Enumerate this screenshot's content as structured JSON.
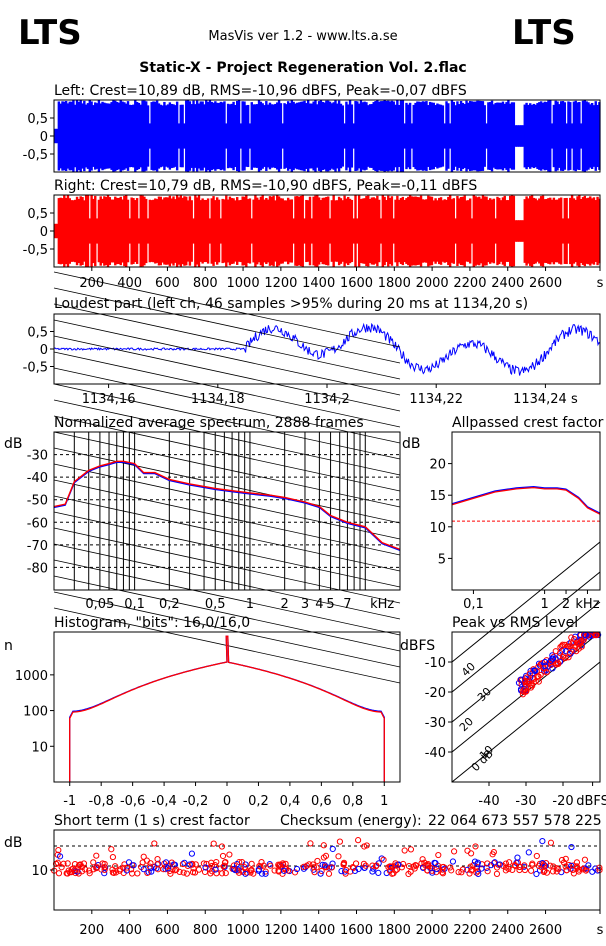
{
  "header": {
    "logo_left": "LTS",
    "logo_right": "LTS",
    "app_title": "MasVis ver 1.2 - www.lts.a.se",
    "file_title": "Static-X - Project Regeneration Vol. 2.flac"
  },
  "colors": {
    "left": "#0000ff",
    "right": "#ff0000",
    "fill_blue": "#0000ff",
    "fill_red": "#ff0000"
  },
  "chart_data": [
    {
      "id": "left",
      "type": "area",
      "title": "Left: Crest=10,89 dB, RMS=-10,96 dBFS, Peak=-0,07 dBFS",
      "ylim": [
        -1,
        1
      ],
      "yticks": [
        "0,5",
        "0",
        "-0,5"
      ],
      "ytick_values": [
        0.5,
        0,
        -0.5
      ],
      "xlim": [
        0,
        2888
      ],
      "series": [
        {
          "values": "waveform envelope"
        }
      ]
    },
    {
      "id": "right",
      "type": "area",
      "title": "Right: Crest=10,79 dB, RMS=-10,90 dBFS, Peak=-0,11 dBFS",
      "ylim": [
        -1,
        1
      ],
      "yticks": [
        "0,5",
        "0",
        "-0,5"
      ],
      "ytick_values": [
        0.5,
        0,
        -0.5
      ],
      "xlim": [
        0,
        2888
      ],
      "xticks": [
        "200",
        "400",
        "600",
        "800",
        "1000",
        "1200",
        "1400",
        "1600",
        "1800",
        "2000",
        "2200",
        "2400",
        "2600",
        "s"
      ],
      "xtick_values": [
        200,
        400,
        600,
        800,
        1000,
        1200,
        1400,
        1600,
        1800,
        2000,
        2200,
        2400,
        2600,
        2888
      ]
    },
    {
      "id": "loudest",
      "type": "line",
      "title": "Loudest part (left  ch, 46 samples >95% during 20 ms at 1134,20 s)",
      "ylim": [
        -1,
        1
      ],
      "yticks": [
        "0,5",
        "0",
        "-0,5"
      ],
      "ytick_values": [
        0.5,
        0,
        -0.5
      ],
      "xlim": [
        1134.15,
        1134.25
      ],
      "xticks": [
        "1134,16",
        "1134,18",
        "1134,2",
        "1134,22",
        "1134,24 s"
      ],
      "xtick_values": [
        1134.16,
        1134.18,
        1134.2,
        1134.22,
        1134.24
      ]
    },
    {
      "id": "spectrum",
      "type": "line",
      "title": "Normalized average spectrum, 2888 frames",
      "ylabel": "dB",
      "ylim": [
        -90,
        -20
      ],
      "yticks": [
        "-30",
        "-40",
        "-50",
        "-60",
        "-70",
        "-80"
      ],
      "ytick_values": [
        -30,
        -40,
        -50,
        -60,
        -70,
        -80
      ],
      "xscale": "log",
      "xlim": [
        0.02,
        20
      ],
      "xticks": [
        "0,05",
        "0,1",
        "0,2",
        "0,5",
        "1",
        "2",
        "3",
        "4",
        "5",
        "7",
        "kHz"
      ],
      "xtick_values": [
        0.05,
        0.1,
        0.2,
        0.5,
        1,
        2,
        3,
        4,
        5,
        7,
        14
      ],
      "series": [
        {
          "x": [
            0.02,
            0.025,
            0.03,
            0.04,
            0.05,
            0.06,
            0.07,
            0.08,
            0.1,
            0.12,
            0.15,
            0.2,
            0.3,
            0.5,
            0.7,
            1,
            1.5,
            2,
            3,
            4,
            5,
            7,
            10,
            14,
            20
          ],
          "values": [
            -53,
            -52,
            -42,
            -37,
            -35,
            -34,
            -33,
            -33,
            -34,
            -38,
            -38,
            -41,
            -43,
            -45,
            -46,
            -47,
            -48,
            -49,
            -51,
            -53,
            -57,
            -60,
            -62,
            -69,
            -72
          ]
        }
      ]
    },
    {
      "id": "allpass",
      "type": "line",
      "title": "Allpassed crest factor",
      "ylabel": "dB",
      "ylim": [
        0,
        25
      ],
      "yticks": [
        "20",
        "15",
        "10",
        "5"
      ],
      "ytick_values": [
        20,
        15,
        10,
        5
      ],
      "xscale": "log",
      "xlim": [
        0.05,
        6
      ],
      "xticks": [
        "0,1",
        "1",
        "2",
        "kHz"
      ],
      "xtick_values": [
        0.1,
        1,
        2,
        4
      ],
      "series": [
        {
          "x": [
            0.05,
            0.1,
            0.2,
            0.4,
            0.7,
            1,
            1.5,
            2,
            3,
            4,
            6
          ],
          "values": [
            13.5,
            14.5,
            15.5,
            16.0,
            16.2,
            16.0,
            16.0,
            15.8,
            14.5,
            13.0,
            12.0
          ]
        }
      ],
      "reference_line": 10.9
    },
    {
      "id": "histogram",
      "type": "line",
      "title": "Histogram, \"bits\": 16,0/16,0",
      "ylabel": "n",
      "yscale": "log",
      "yticks": [
        "1000",
        "100",
        "10"
      ],
      "ytick_values": [
        1000,
        100,
        10
      ],
      "xlim": [
        -1.1,
        1.1
      ],
      "xticks": [
        "-1",
        "-0,8",
        "-0,6",
        "-0,4",
        "-0,2",
        "0",
        "0,2",
        "0,4",
        "0,6",
        "0,8",
        "1"
      ],
      "xtick_values": [
        -1,
        -0.8,
        -0.6,
        -0.4,
        -0.2,
        0,
        0.2,
        0.4,
        0.6,
        0.8,
        1
      ]
    },
    {
      "id": "peak_rms",
      "type": "scatter",
      "title": "Peak vs RMS level",
      "ylabel": "dBFS",
      "xlabel": "dBFS",
      "xlim": [
        -50,
        -10
      ],
      "ylim": [
        -50,
        0
      ],
      "yticks": [
        "-10",
        "-20",
        "-30",
        "-40"
      ],
      "ytick_values": [
        -10,
        -20,
        -30,
        -40
      ],
      "xticks": [
        "-40",
        "-30",
        "-20",
        "dBFS"
      ],
      "xtick_values": [
        -40,
        -30,
        -20,
        -12
      ],
      "diagonal_labels": [
        "40",
        "30",
        "20",
        "10",
        "0 dB"
      ]
    },
    {
      "id": "short_crest",
      "type": "scatter",
      "title": "Short term (1 s) crest factor",
      "checksum_label": "Checksum (energy):",
      "checksum_value": "22 064 673 557 578 225",
      "ylabel": "dB",
      "yticks": [
        "10"
      ],
      "ytick_values": [
        10
      ],
      "xlim": [
        0,
        2888
      ],
      "xticks": [
        "200",
        "400",
        "600",
        "800",
        "1000",
        "1200",
        "1400",
        "1600",
        "1800",
        "2000",
        "2200",
        "2400",
        "2600",
        "s"
      ],
      "xtick_values": [
        200,
        400,
        600,
        800,
        1000,
        1200,
        1400,
        1600,
        1800,
        2000,
        2200,
        2400,
        2600,
        2888
      ]
    }
  ]
}
